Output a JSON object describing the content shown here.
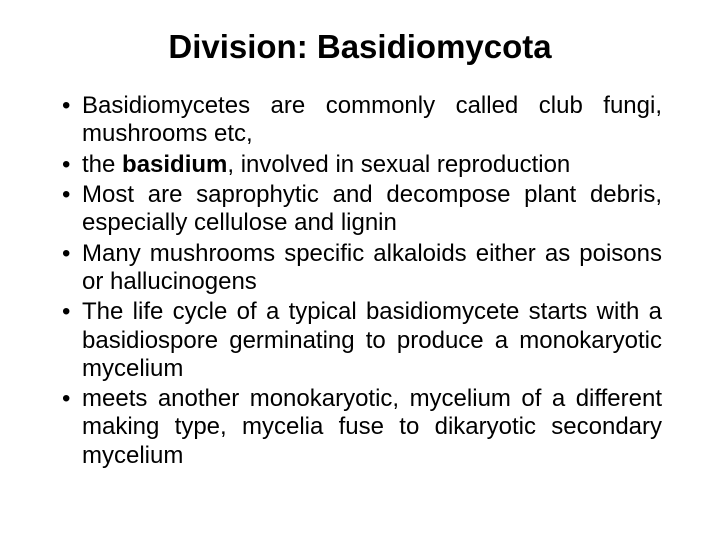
{
  "slide": {
    "title": "Division: Basidiomycota",
    "title_fontsize": 33,
    "title_weight": "bold",
    "body_fontsize": 24,
    "line_height": 1.18,
    "text_color": "#000000",
    "background_color": "#ffffff",
    "bullets": [
      {
        "pre": "Basidiomycetes are commonly called club fungi, mushrooms etc,",
        "bold": "",
        "post": ""
      },
      {
        "pre": "the ",
        "bold": "basidium",
        "post": ", involved in sexual reproduction"
      },
      {
        "pre": "Most are saprophytic and decompose plant debris, especially cellulose and lignin",
        "bold": "",
        "post": ""
      },
      {
        "pre": "Many mushrooms specific alkaloids either as poisons or hallucinogens",
        "bold": "",
        "post": ""
      },
      {
        "pre": "The life cycle of a typical basidiomycete starts with a basidiospore germinating to produce a monokaryotic mycelium",
        "bold": "",
        "post": ""
      },
      {
        "pre": "meets another monokaryotic, mycelium of a different making type, mycelia fuse to dikaryotic secondary mycelium",
        "bold": "",
        "post": ""
      }
    ]
  }
}
